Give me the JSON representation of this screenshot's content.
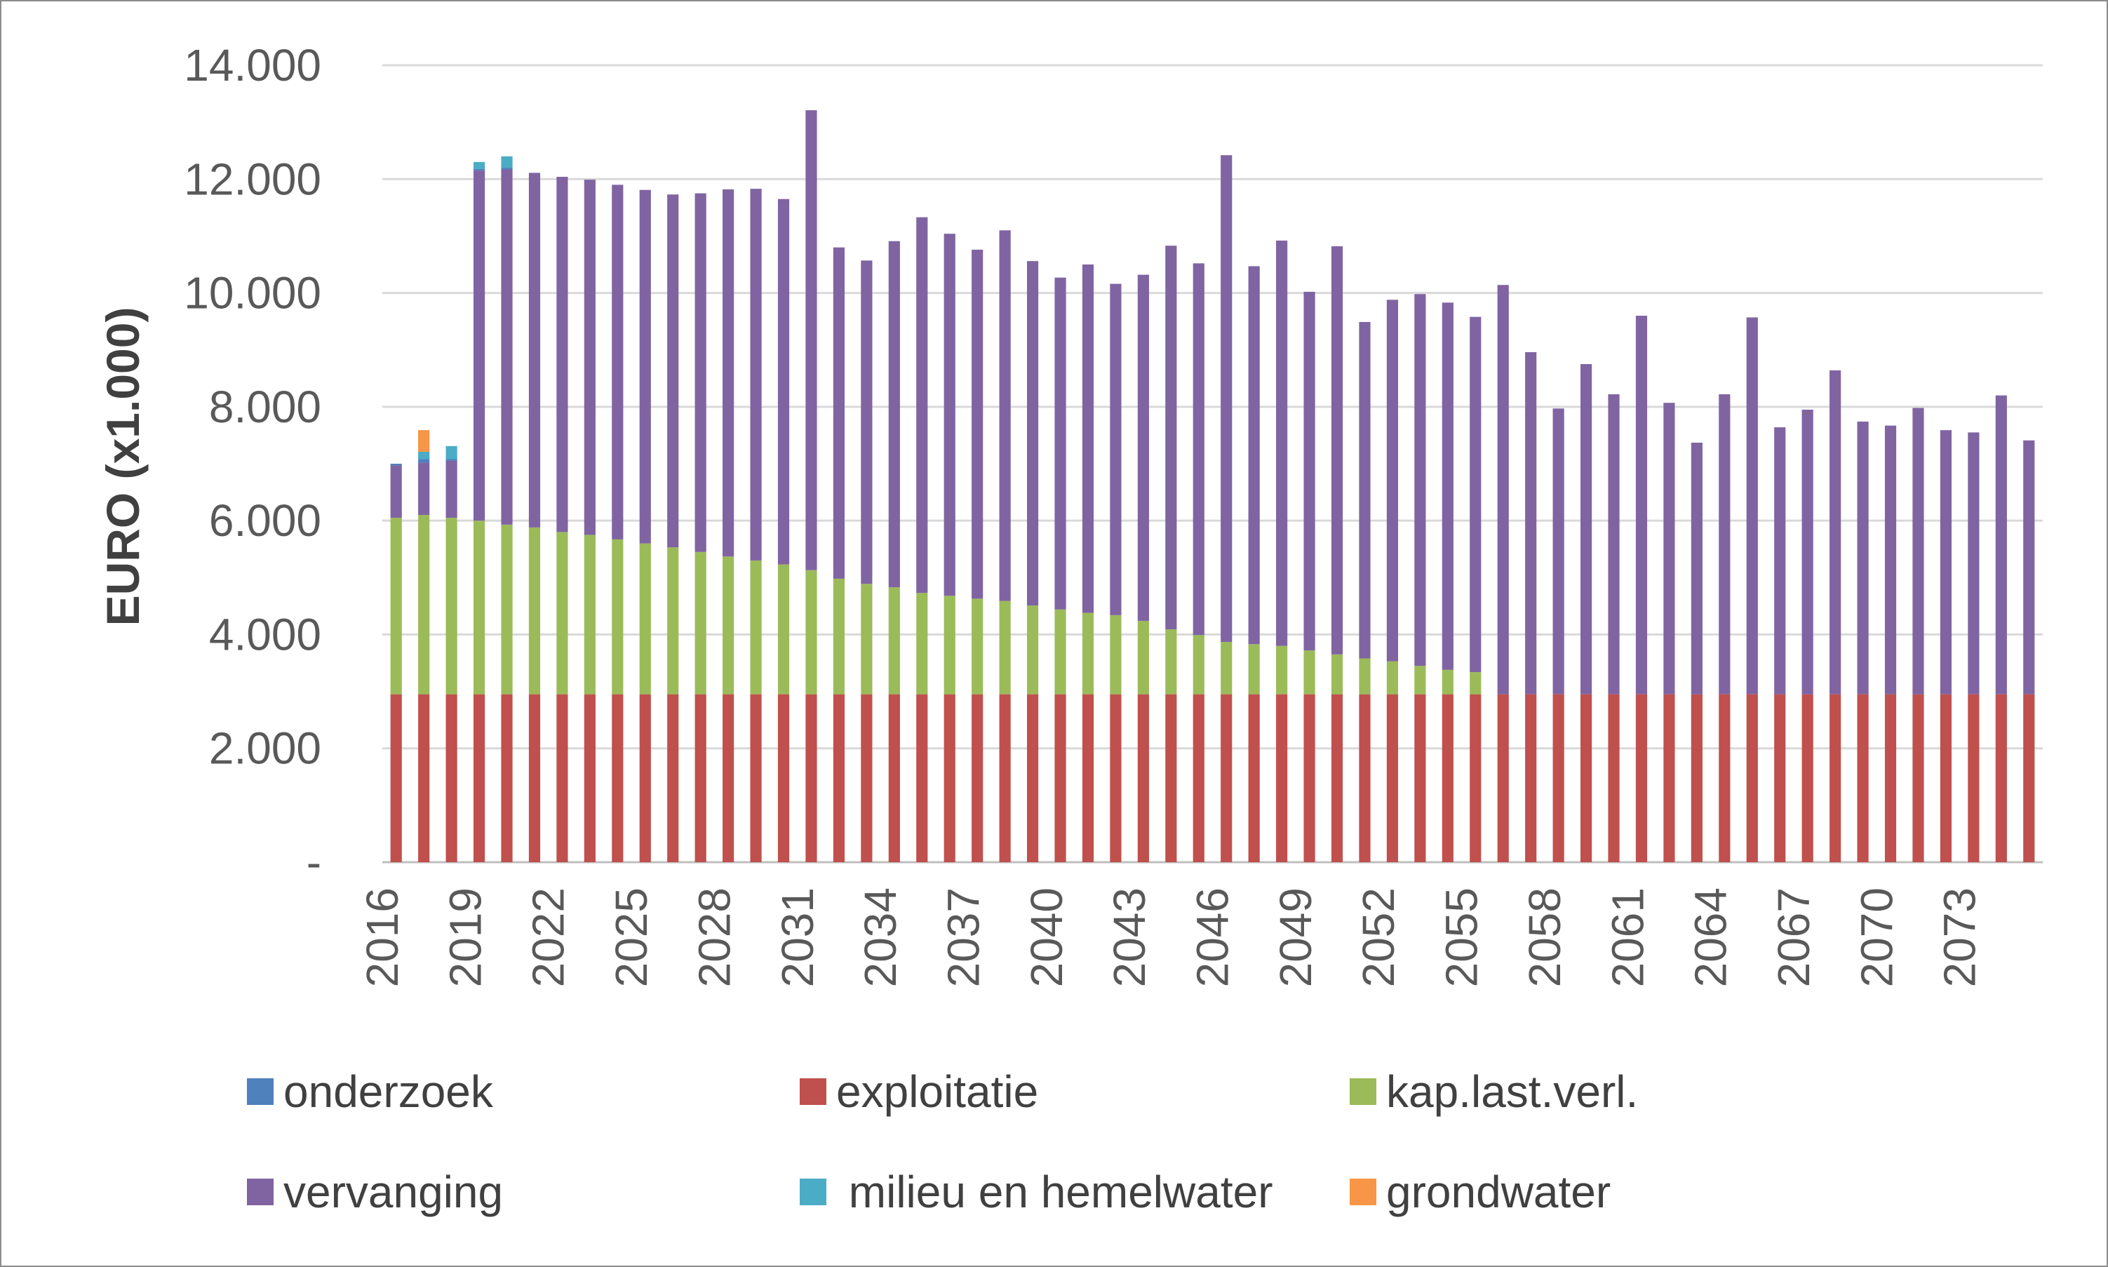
{
  "chart_data": {
    "type": "bar",
    "stacked": true,
    "ylabel": "EURO (x1.000)",
    "xlabel": "",
    "ylim": [
      0,
      14000
    ],
    "y_ticks": [
      "-",
      "2.000",
      "4.000",
      "6.000",
      "8.000",
      "10.000",
      "12.000",
      "14.000"
    ],
    "y_tick_values": [
      0,
      2000,
      4000,
      6000,
      8000,
      10000,
      12000,
      14000
    ],
    "grid": true,
    "legend_position": "bottom",
    "x_tick_labels": [
      "2016",
      "2019",
      "2022",
      "2025",
      "2028",
      "2031",
      "2034",
      "2037",
      "2040",
      "2043",
      "2046",
      "2049",
      "2052",
      "2055",
      "2058",
      "2061",
      "2064",
      "2067",
      "2070",
      "2073"
    ],
    "categories": [
      "2016",
      "2017",
      "2018",
      "2019",
      "2020",
      "2021",
      "2022",
      "2023",
      "2024",
      "2025",
      "2026",
      "2027",
      "2028",
      "2029",
      "2030",
      "2031",
      "2032",
      "2033",
      "2034",
      "2035",
      "2036",
      "2037",
      "2038",
      "2039",
      "2040",
      "2041",
      "2042",
      "2043",
      "2044",
      "2045",
      "2046",
      "2047",
      "2048",
      "2049",
      "2050",
      "2051",
      "2052",
      "2053",
      "2054",
      "2055",
      "2056",
      "2057",
      "2058",
      "2059",
      "2060",
      "2061",
      "2062",
      "2063",
      "2064",
      "2065",
      "2066",
      "2067",
      "2068",
      "2069",
      "2070",
      "2071",
      "2072",
      "2073",
      "2074",
      "2075"
    ],
    "series": [
      {
        "name": "onderzoek",
        "color": "#4F81BD",
        "values": [
          30,
          60,
          30,
          30,
          30,
          0,
          0,
          0,
          0,
          0,
          0,
          0,
          0,
          0,
          0,
          0,
          0,
          0,
          0,
          0,
          0,
          0,
          0,
          0,
          0,
          0,
          0,
          0,
          0,
          0,
          0,
          0,
          0,
          0,
          0,
          0,
          0,
          0,
          0,
          0,
          0,
          0,
          0,
          0,
          0,
          0,
          0,
          0,
          0,
          0,
          0,
          0,
          0,
          0,
          0,
          0,
          0,
          0,
          0,
          0
        ]
      },
      {
        "name": "exploitatie",
        "color": "#C0504D",
        "values": [
          2950,
          2950,
          2950,
          2950,
          2950,
          2950,
          2950,
          2950,
          2950,
          2950,
          2950,
          2950,
          2950,
          2950,
          2950,
          2950,
          2950,
          2950,
          2950,
          2950,
          2950,
          2950,
          2950,
          2950,
          2950,
          2950,
          2950,
          2950,
          2950,
          2950,
          2950,
          2950,
          2950,
          2950,
          2950,
          2950,
          2950,
          2950,
          2950,
          2950,
          2950,
          2950,
          2950,
          2950,
          2950,
          2950,
          2950,
          2950,
          2950,
          2950,
          2950,
          2950,
          2950,
          2950,
          2950,
          2950,
          2950,
          2950,
          2950,
          2950
        ]
      },
      {
        "name": "kap.last.verl.",
        "color": "#9BBB59",
        "values": [
          3100,
          3150,
          3100,
          3050,
          2980,
          2930,
          2850,
          2800,
          2720,
          2650,
          2580,
          2500,
          2420,
          2350,
          2280,
          2180,
          2030,
          1940,
          1880,
          1780,
          1730,
          1680,
          1640,
          1560,
          1490,
          1430,
          1390,
          1290,
          1140,
          1040,
          920,
          880,
          850,
          770,
          700,
          630,
          580,
          500,
          430,
          390,
          0,
          0,
          0,
          0,
          0,
          0,
          0,
          0,
          0,
          0,
          0,
          0,
          0,
          0,
          0,
          0,
          0,
          0,
          0,
          0
        ]
      },
      {
        "name": "vervanging",
        "color": "#8064A2",
        "values": [
          920,
          920,
          1000,
          6150,
          6240,
          6230,
          6240,
          6240,
          6230,
          6210,
          6200,
          6300,
          6450,
          6530,
          6420,
          8080,
          5820,
          5680,
          6080,
          6600,
          6360,
          6130,
          6510,
          6050,
          5830,
          6120,
          5820,
          6080,
          6740,
          6530,
          8550,
          6640,
          7120,
          6300,
          7170,
          5910,
          6350,
          6530,
          6450,
          6240,
          7190,
          6010,
          5020,
          5800,
          5270,
          6650,
          5120,
          4420,
          5270,
          6620,
          4690,
          5000,
          5690,
          4790,
          4720,
          5030,
          4640,
          4600,
          5250,
          4460
        ]
      },
      {
        "name": "milieu en hemelwater",
        "color": "#4BACC6",
        "values": [
          0,
          130,
          230,
          120,
          200,
          0,
          0,
          0,
          0,
          0,
          0,
          0,
          0,
          0,
          0,
          0,
          0,
          0,
          0,
          0,
          0,
          0,
          0,
          0,
          0,
          0,
          0,
          0,
          0,
          0,
          0,
          0,
          0,
          0,
          0,
          0,
          0,
          0,
          0,
          0,
          0,
          0,
          0,
          0,
          0,
          0,
          0,
          0,
          0,
          0,
          0,
          0,
          0,
          0,
          0,
          0,
          0,
          0,
          0,
          0
        ]
      },
      {
        "name": "grondwater",
        "color": "#F79646",
        "values": [
          0,
          380,
          0,
          0,
          0,
          0,
          0,
          0,
          0,
          0,
          0,
          0,
          0,
          0,
          0,
          0,
          0,
          0,
          0,
          0,
          0,
          0,
          0,
          0,
          0,
          0,
          0,
          0,
          0,
          0,
          0,
          0,
          0,
          0,
          0,
          0,
          0,
          0,
          0,
          0,
          0,
          0,
          0,
          0,
          0,
          0,
          0,
          0,
          0,
          0,
          0,
          0,
          0,
          0,
          0,
          0,
          0,
          0,
          0,
          0
        ]
      }
    ]
  },
  "legend": {
    "items": [
      {
        "label": "onderzoek",
        "color": "#4F81BD"
      },
      {
        "label": "exploitatie",
        "color": "#C0504D"
      },
      {
        "label": "kap.last.verl.",
        "color": "#9BBB59"
      },
      {
        "label": "vervanging",
        "color": "#8064A2"
      },
      {
        "label": " milieu en hemelwater",
        "color": "#4BACC6"
      },
      {
        "label": "grondwater",
        "color": "#F79646"
      }
    ]
  }
}
